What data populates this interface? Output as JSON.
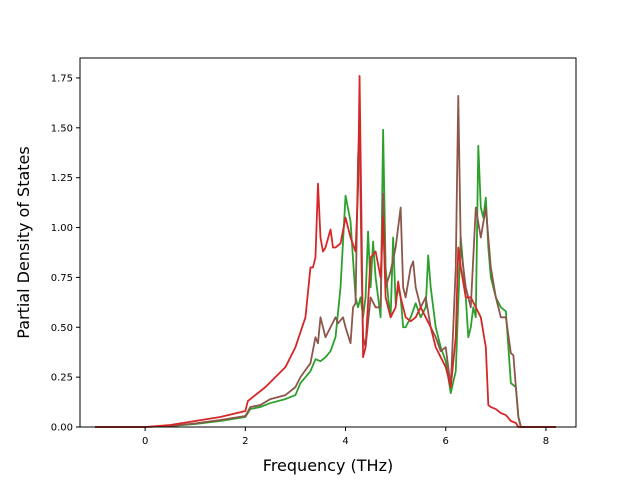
{
  "chart_data": {
    "type": "line",
    "xlabel": "Frequency (THz)",
    "ylabel": "Partial Density of States",
    "xlim": [
      -1.3,
      8.6
    ],
    "ylim": [
      0,
      1.85
    ],
    "x_ticks": [
      0,
      2,
      4,
      6,
      8
    ],
    "x_tick_labels": [
      "0",
      "2",
      "4",
      "6",
      "8"
    ],
    "y_ticks": [
      0,
      0.25,
      0.5,
      0.75,
      1.0,
      1.25,
      1.5,
      1.75
    ],
    "y_tick_labels": [
      "0.00",
      "0.25",
      "0.50",
      "0.75",
      "1.00",
      "1.25",
      "1.50",
      "1.75"
    ],
    "grid": false,
    "series": [
      {
        "color": "#2ca02c",
        "points": [
          [
            -1.0,
            0.0
          ],
          [
            0.0,
            0.0
          ],
          [
            0.5,
            0.005
          ],
          [
            1.0,
            0.015
          ],
          [
            1.5,
            0.03
          ],
          [
            2.0,
            0.05
          ],
          [
            2.1,
            0.09
          ],
          [
            2.3,
            0.1
          ],
          [
            2.5,
            0.12
          ],
          [
            2.8,
            0.14
          ],
          [
            3.0,
            0.16
          ],
          [
            3.1,
            0.22
          ],
          [
            3.3,
            0.28
          ],
          [
            3.4,
            0.34
          ],
          [
            3.5,
            0.33
          ],
          [
            3.6,
            0.35
          ],
          [
            3.7,
            0.38
          ],
          [
            3.8,
            0.45
          ],
          [
            3.9,
            0.7
          ],
          [
            4.0,
            1.16
          ],
          [
            4.1,
            1.03
          ],
          [
            4.2,
            0.65
          ],
          [
            4.25,
            0.6
          ],
          [
            4.3,
            0.65
          ],
          [
            4.35,
            0.55
          ],
          [
            4.4,
            0.65
          ],
          [
            4.45,
            0.98
          ],
          [
            4.5,
            0.7
          ],
          [
            4.55,
            0.93
          ],
          [
            4.6,
            0.75
          ],
          [
            4.7,
            0.55
          ],
          [
            4.75,
            1.49
          ],
          [
            4.8,
            0.8
          ],
          [
            4.85,
            0.65
          ],
          [
            4.9,
            0.55
          ],
          [
            4.95,
            0.95
          ],
          [
            5.0,
            0.62
          ],
          [
            5.05,
            0.7
          ],
          [
            5.1,
            0.65
          ],
          [
            5.15,
            0.5
          ],
          [
            5.2,
            0.5
          ],
          [
            5.3,
            0.55
          ],
          [
            5.4,
            0.62
          ],
          [
            5.5,
            0.55
          ],
          [
            5.6,
            0.6
          ],
          [
            5.65,
            0.86
          ],
          [
            5.7,
            0.7
          ],
          [
            5.8,
            0.5
          ],
          [
            5.9,
            0.4
          ],
          [
            6.0,
            0.33
          ],
          [
            6.1,
            0.17
          ],
          [
            6.2,
            0.28
          ],
          [
            6.3,
            0.95
          ],
          [
            6.4,
            0.65
          ],
          [
            6.45,
            0.45
          ],
          [
            6.5,
            0.5
          ],
          [
            6.55,
            0.6
          ],
          [
            6.6,
            0.55
          ],
          [
            6.65,
            1.41
          ],
          [
            6.7,
            1.1
          ],
          [
            6.75,
            1.05
          ],
          [
            6.8,
            1.15
          ],
          [
            6.85,
            0.9
          ],
          [
            6.9,
            0.75
          ],
          [
            7.0,
            0.65
          ],
          [
            7.1,
            0.6
          ],
          [
            7.2,
            0.58
          ],
          [
            7.3,
            0.22
          ],
          [
            7.4,
            0.2
          ],
          [
            7.45,
            0.05
          ],
          [
            7.5,
            0.0
          ],
          [
            8.2,
            0.0
          ]
        ]
      },
      {
        "color": "#8c564b",
        "points": [
          [
            -1.0,
            0.0
          ],
          [
            0.0,
            0.0
          ],
          [
            0.5,
            0.005
          ],
          [
            1.0,
            0.018
          ],
          [
            1.5,
            0.035
          ],
          [
            2.0,
            0.055
          ],
          [
            2.1,
            0.1
          ],
          [
            2.3,
            0.11
          ],
          [
            2.5,
            0.14
          ],
          [
            2.8,
            0.16
          ],
          [
            3.0,
            0.2
          ],
          [
            3.1,
            0.25
          ],
          [
            3.3,
            0.32
          ],
          [
            3.4,
            0.45
          ],
          [
            3.45,
            0.42
          ],
          [
            3.5,
            0.55
          ],
          [
            3.6,
            0.45
          ],
          [
            3.7,
            0.5
          ],
          [
            3.8,
            0.55
          ],
          [
            3.85,
            0.52
          ],
          [
            3.95,
            0.55
          ],
          [
            4.0,
            0.5
          ],
          [
            4.1,
            0.42
          ],
          [
            4.15,
            0.6
          ],
          [
            4.2,
            0.62
          ],
          [
            4.25,
            1.35
          ],
          [
            4.28,
            1.5
          ],
          [
            4.32,
            0.8
          ],
          [
            4.35,
            0.45
          ],
          [
            4.4,
            0.4
          ],
          [
            4.5,
            0.65
          ],
          [
            4.6,
            0.6
          ],
          [
            4.7,
            0.6
          ],
          [
            4.75,
            1.17
          ],
          [
            4.8,
            0.7
          ],
          [
            4.9,
            0.78
          ],
          [
            5.0,
            0.9
          ],
          [
            5.05,
            1.0
          ],
          [
            5.1,
            1.1
          ],
          [
            5.15,
            0.7
          ],
          [
            5.2,
            0.65
          ],
          [
            5.3,
            0.8
          ],
          [
            5.35,
            0.83
          ],
          [
            5.4,
            0.7
          ],
          [
            5.5,
            0.6
          ],
          [
            5.6,
            0.65
          ],
          [
            5.7,
            0.5
          ],
          [
            5.8,
            0.45
          ],
          [
            5.9,
            0.38
          ],
          [
            6.0,
            0.4
          ],
          [
            6.1,
            0.2
          ],
          [
            6.2,
            0.8
          ],
          [
            6.25,
            1.66
          ],
          [
            6.3,
            0.9
          ],
          [
            6.4,
            0.7
          ],
          [
            6.5,
            0.6
          ],
          [
            6.6,
            1.1
          ],
          [
            6.7,
            0.95
          ],
          [
            6.8,
            1.1
          ],
          [
            6.9,
            0.8
          ],
          [
            7.0,
            0.65
          ],
          [
            7.1,
            0.55
          ],
          [
            7.2,
            0.55
          ],
          [
            7.3,
            0.37
          ],
          [
            7.35,
            0.36
          ],
          [
            7.4,
            0.2
          ],
          [
            7.45,
            0.05
          ],
          [
            7.5,
            0.0
          ],
          [
            8.2,
            0.0
          ]
        ]
      },
      {
        "color": "#d62728",
        "points": [
          [
            -1.0,
            0.0
          ],
          [
            0.0,
            0.0
          ],
          [
            0.5,
            0.01
          ],
          [
            1.0,
            0.03
          ],
          [
            1.5,
            0.05
          ],
          [
            2.0,
            0.08
          ],
          [
            2.05,
            0.13
          ],
          [
            2.2,
            0.16
          ],
          [
            2.4,
            0.2
          ],
          [
            2.6,
            0.25
          ],
          [
            2.8,
            0.3
          ],
          [
            3.0,
            0.4
          ],
          [
            3.2,
            0.55
          ],
          [
            3.3,
            0.8
          ],
          [
            3.35,
            0.8
          ],
          [
            3.4,
            0.85
          ],
          [
            3.45,
            1.22
          ],
          [
            3.5,
            0.95
          ],
          [
            3.55,
            0.88
          ],
          [
            3.6,
            0.9
          ],
          [
            3.7,
            0.99
          ],
          [
            3.75,
            0.9
          ],
          [
            3.8,
            0.9
          ],
          [
            3.9,
            0.92
          ],
          [
            4.0,
            1.05
          ],
          [
            4.1,
            0.95
          ],
          [
            4.2,
            0.88
          ],
          [
            4.25,
            1.2
          ],
          [
            4.28,
            1.76
          ],
          [
            4.32,
            1.0
          ],
          [
            4.35,
            0.35
          ],
          [
            4.4,
            0.4
          ],
          [
            4.5,
            0.85
          ],
          [
            4.6,
            0.88
          ],
          [
            4.7,
            0.75
          ],
          [
            4.75,
            1.05
          ],
          [
            4.8,
            0.65
          ],
          [
            4.9,
            0.55
          ],
          [
            5.0,
            0.6
          ],
          [
            5.05,
            0.73
          ],
          [
            5.1,
            0.65
          ],
          [
            5.2,
            0.55
          ],
          [
            5.3,
            0.53
          ],
          [
            5.4,
            0.55
          ],
          [
            5.5,
            0.6
          ],
          [
            5.6,
            0.55
          ],
          [
            5.7,
            0.5
          ],
          [
            5.8,
            0.4
          ],
          [
            5.9,
            0.35
          ],
          [
            6.0,
            0.3
          ],
          [
            6.1,
            0.2
          ],
          [
            6.2,
            0.45
          ],
          [
            6.25,
            0.9
          ],
          [
            6.3,
            0.8
          ],
          [
            6.4,
            0.65
          ],
          [
            6.5,
            0.65
          ],
          [
            6.6,
            0.6
          ],
          [
            6.7,
            0.55
          ],
          [
            6.8,
            0.4
          ],
          [
            6.85,
            0.11
          ],
          [
            6.9,
            0.1
          ],
          [
            7.0,
            0.09
          ],
          [
            7.1,
            0.07
          ],
          [
            7.2,
            0.06
          ],
          [
            7.3,
            0.03
          ],
          [
            7.4,
            0.02
          ],
          [
            7.45,
            0.0
          ],
          [
            8.2,
            0.0
          ]
        ]
      }
    ]
  }
}
